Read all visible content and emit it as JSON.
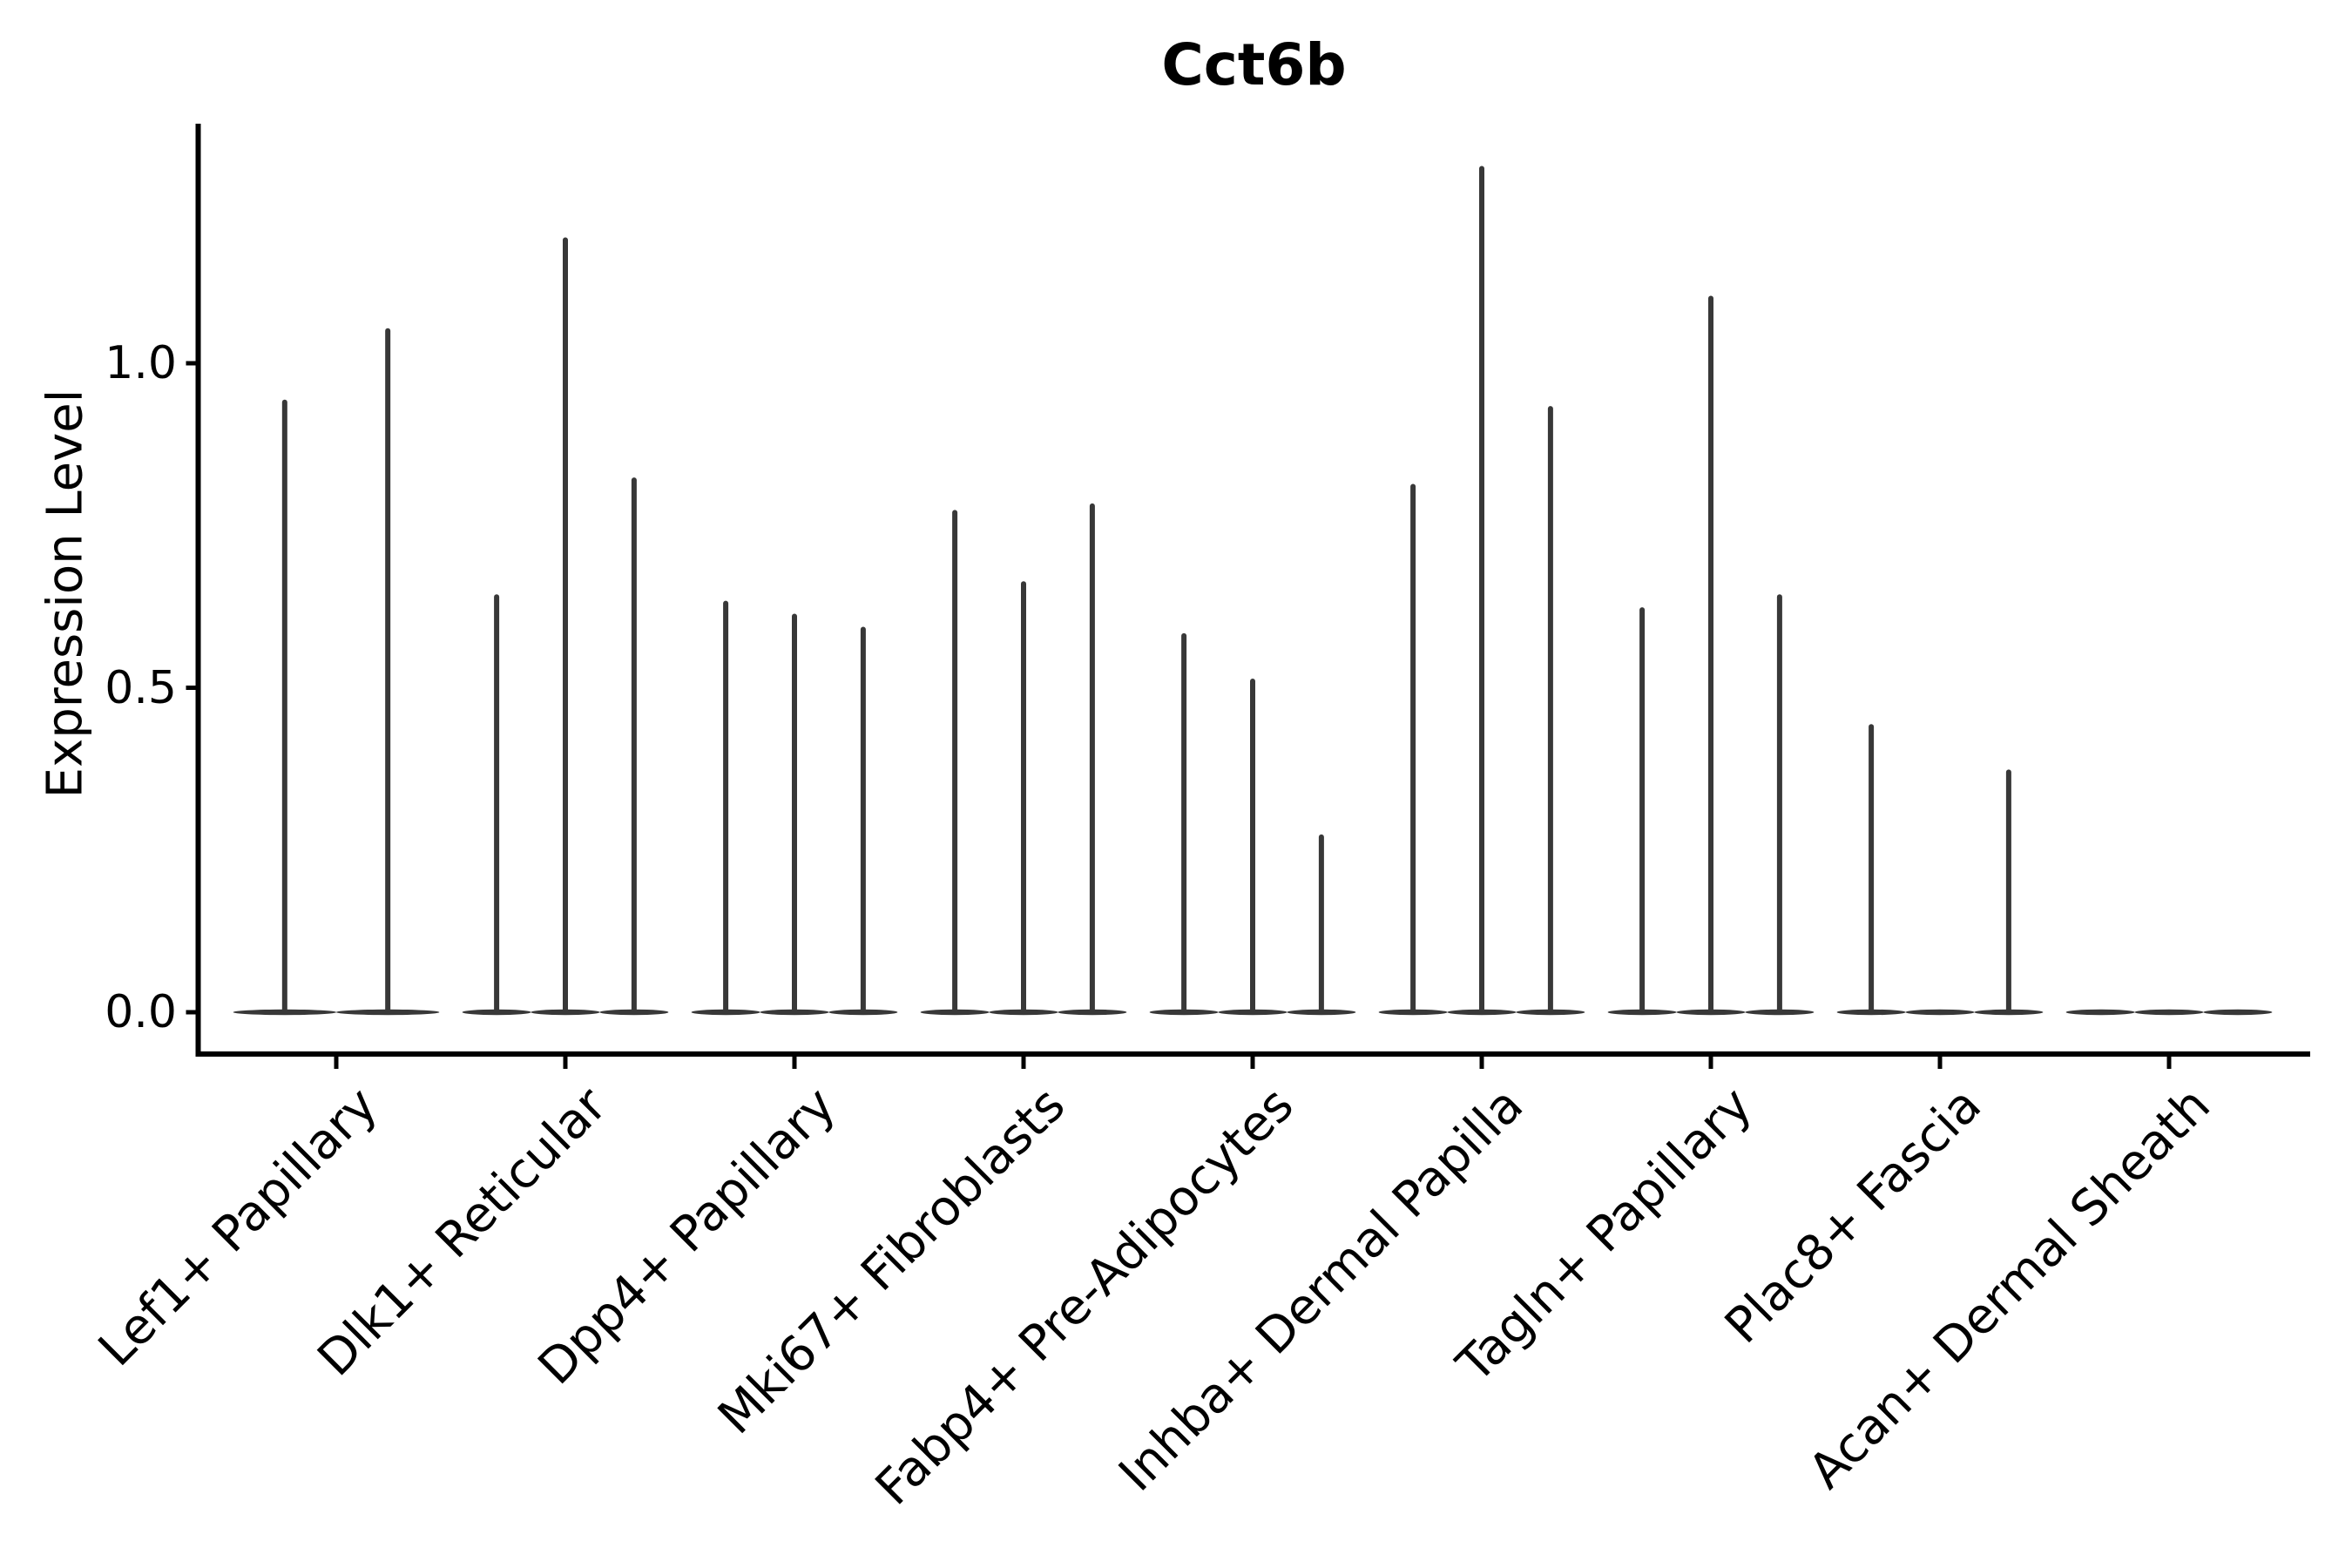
{
  "title": "Cct6b",
  "chart_data": {
    "type": "violin",
    "title": "Cct6b",
    "xlabel": "",
    "ylabel": "Expression Level",
    "ylim": [
      -0.065,
      1.369
    ],
    "yticks": [
      0.0,
      0.5,
      1.0
    ],
    "ytick_labels": [
      "0.0",
      "0.5",
      "1.0"
    ],
    "grid": false,
    "legend": "none",
    "categories": [
      "Lef1+ Papillary",
      "Dlk1+ Reticular",
      "Dpp4+ Papillary",
      "Mki67+ Fibroblasts",
      "Fabp4+ Pre-Adipocytes",
      "Inhba+ Dermal Papilla",
      "Tagln+ Papillary",
      "Plac8+ Fascia",
      "Acan+ Dermal Sheath"
    ],
    "series": [
      {
        "name": "Lef1+ Papillary",
        "violin_max_values": [
          0.94,
          1.05
        ]
      },
      {
        "name": "Dlk1+ Reticular",
        "violin_max_values": [
          0.64,
          1.19,
          0.82
        ]
      },
      {
        "name": "Dpp4+ Papillary",
        "violin_max_values": [
          0.63,
          0.61,
          0.59
        ]
      },
      {
        "name": "Mki67+ Fibroblasts",
        "violin_max_values": [
          0.77,
          0.66,
          0.78
        ]
      },
      {
        "name": "Fabp4+ Pre-Adipocytes",
        "violin_max_values": [
          0.58,
          0.51,
          0.27
        ]
      },
      {
        "name": "Inhba+ Dermal Papilla",
        "violin_max_values": [
          0.81,
          1.3,
          0.93
        ]
      },
      {
        "name": "Tagln+ Papillary",
        "violin_max_values": [
          0.62,
          1.1,
          0.64
        ]
      },
      {
        "name": "Plac8+ Fascia",
        "violin_max_values": [
          0.44,
          0.0,
          0.37
        ]
      },
      {
        "name": "Acan+ Dermal Sheath",
        "violin_max_values": [
          0.0,
          0.0,
          0.0
        ]
      }
    ],
    "annotation": "All violins are collapsed at 0 with thin max-value spikes",
    "colors": {
      "violin": "#383838",
      "spine": "#000000",
      "text": "#000000",
      "background": "#ffffff"
    }
  }
}
